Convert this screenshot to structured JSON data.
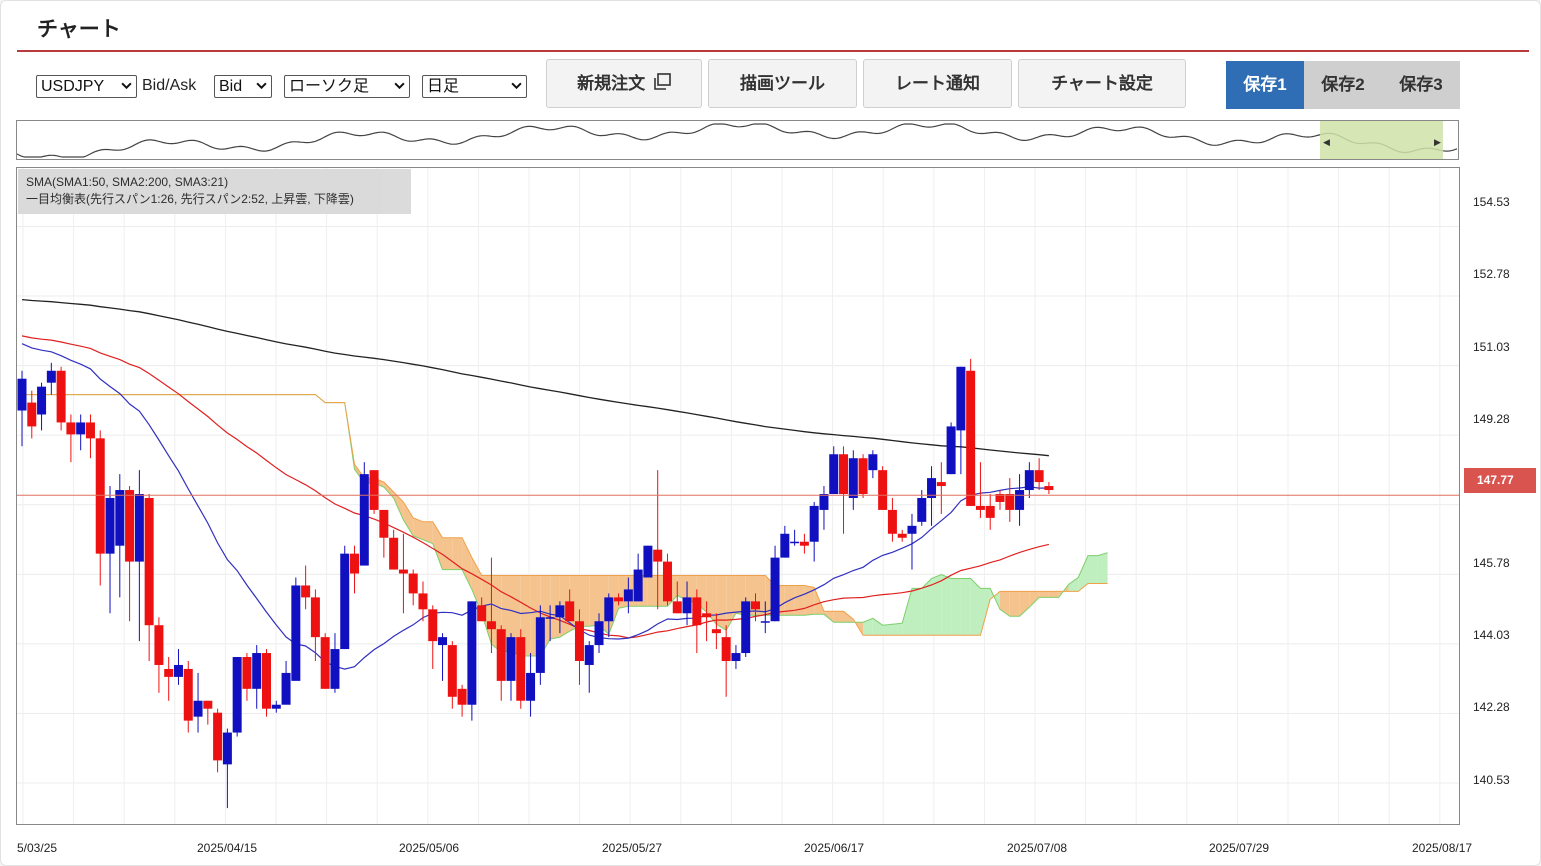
{
  "header": {
    "title": "チャート"
  },
  "controls": {
    "symbol": "USDJPY",
    "bid_ask_label": "Bid/Ask",
    "bid_ask": "Bid",
    "chart_style": "ローソク足",
    "timeframe": "日足"
  },
  "toolbar": {
    "new_order": "新規注文",
    "drawing_tools": "描画ツール",
    "rate_alert": "レート通知",
    "chart_settings": "チャート設定"
  },
  "save_tabs": [
    {
      "label": "保存1",
      "active": true
    },
    {
      "label": "保存2",
      "active": false
    },
    {
      "label": "保存3",
      "active": false
    }
  ],
  "legend": {
    "line1": "SMA(SMA1:50, SMA2:200, SMA3:21)",
    "line2": "一目均衡表(先行スパン1:26, 先行スパン2:52, 上昇雲, 下降雲)"
  },
  "colors": {
    "accent_rule": "#b83a3a",
    "active_tab": "#2f6db5",
    "bull": "#1010c0",
    "bear": "#ee1111",
    "sma1": "#e02020",
    "sma2": "#222222",
    "sma3": "#3030c0",
    "cloud_bear": "#f5c48e",
    "cloud_bull": "#bfeebf",
    "price_line": "#e07060"
  },
  "chart_data": {
    "type": "candlestick",
    "y_ticks": [
      "154.53",
      "152.78",
      "151.03",
      "149.28",
      "147.77",
      "145.78",
      "144.03",
      "142.28",
      "140.53"
    ],
    "current_price": "147.77",
    "x_ticks": [
      "5/03/25",
      "2025/04/15",
      "2025/05/06",
      "2025/05/27",
      "2025/06/17",
      "2025/07/08",
      "2025/07/29",
      "2025/08/17"
    ],
    "ylim": [
      139.5,
      156.0
    ],
    "grid": true,
    "candles": [
      [
        149.9,
        150.7,
        149.0,
        150.9
      ],
      [
        150.1,
        149.5,
        149.2,
        150.4
      ],
      [
        149.8,
        150.5,
        149.4,
        150.6
      ],
      [
        150.6,
        150.9,
        150.3,
        151.1
      ],
      [
        150.9,
        149.6,
        149.4,
        151.0
      ],
      [
        149.6,
        149.3,
        148.6,
        149.8
      ],
      [
        149.3,
        149.6,
        148.9,
        149.8
      ],
      [
        149.6,
        149.2,
        148.7,
        149.8
      ],
      [
        149.2,
        146.3,
        145.5,
        149.4
      ],
      [
        146.3,
        147.7,
        144.8,
        148.0
      ],
      [
        146.5,
        147.9,
        145.2,
        148.3
      ],
      [
        147.9,
        146.1,
        144.6,
        148.0
      ],
      [
        146.1,
        147.8,
        144.1,
        148.4
      ],
      [
        147.7,
        144.5,
        143.6,
        147.8
      ],
      [
        144.5,
        143.5,
        142.8,
        144.7
      ],
      [
        143.4,
        143.2,
        142.6,
        143.7
      ],
      [
        143.2,
        143.5,
        143.0,
        143.9
      ],
      [
        143.4,
        142.1,
        141.8,
        143.6
      ],
      [
        142.2,
        142.6,
        141.8,
        143.3
      ],
      [
        142.6,
        142.4,
        142.0,
        142.6
      ],
      [
        142.3,
        141.1,
        140.8,
        142.4
      ],
      [
        141.0,
        141.8,
        139.9,
        141.9
      ],
      [
        141.8,
        143.7,
        141.7,
        143.7
      ],
      [
        143.7,
        142.9,
        142.6,
        143.8
      ],
      [
        142.9,
        143.8,
        142.4,
        144.0
      ],
      [
        143.8,
        142.4,
        142.2,
        143.9
      ],
      [
        142.4,
        142.5,
        142.3,
        142.6
      ],
      [
        142.5,
        143.3,
        142.6,
        143.6
      ],
      [
        143.1,
        145.5,
        143.2,
        145.7
      ],
      [
        145.5,
        145.2,
        144.9,
        146.0
      ],
      [
        145.2,
        144.2,
        143.6,
        145.4
      ],
      [
        144.2,
        142.9,
        142.9,
        144.3
      ],
      [
        142.9,
        143.9,
        142.8,
        144.3
      ],
      [
        143.9,
        146.3,
        143.9,
        146.5
      ],
      [
        146.3,
        145.8,
        145.3,
        146.5
      ],
      [
        146.0,
        148.3,
        146.0,
        148.6
      ],
      [
        148.4,
        147.4,
        147.3,
        148.4
      ],
      [
        147.4,
        146.7,
        146.2,
        147.4
      ],
      [
        146.7,
        145.9,
        145.9,
        146.9
      ],
      [
        145.9,
        145.8,
        144.8,
        146.8
      ],
      [
        145.8,
        145.3,
        145.0,
        145.9
      ],
      [
        145.3,
        144.9,
        144.6,
        145.6
      ],
      [
        144.9,
        144.1,
        143.4,
        145.0
      ],
      [
        144.0,
        144.2,
        143.1,
        144.3
      ],
      [
        144.0,
        142.7,
        142.4,
        144.1
      ],
      [
        142.9,
        142.5,
        142.2,
        143.0
      ],
      [
        142.5,
        145.1,
        142.1,
        145.1
      ],
      [
        145.0,
        144.6,
        144.6,
        145.2
      ],
      [
        144.6,
        144.4,
        143.8,
        146.2
      ],
      [
        144.4,
        143.1,
        142.6,
        144.5
      ],
      [
        143.1,
        144.2,
        142.6,
        144.3
      ],
      [
        144.2,
        142.6,
        142.4,
        144.4
      ],
      [
        142.6,
        143.3,
        142.2,
        143.8
      ],
      [
        143.3,
        144.7,
        143.0,
        145.0
      ],
      [
        144.7,
        144.7,
        144.1,
        145.0
      ],
      [
        144.7,
        145.0,
        144.3,
        145.1
      ],
      [
        145.1,
        144.6,
        144.6,
        145.4
      ],
      [
        144.6,
        143.6,
        143.0,
        144.9
      ],
      [
        143.5,
        144.0,
        142.8,
        144.1
      ],
      [
        144.0,
        144.6,
        143.8,
        144.8
      ],
      [
        144.6,
        145.2,
        144.2,
        145.3
      ],
      [
        145.2,
        145.1,
        145.0,
        145.3
      ],
      [
        145.1,
        145.4,
        144.8,
        145.7
      ],
      [
        145.1,
        145.9,
        145.1,
        146.3
      ],
      [
        145.7,
        146.5,
        145.7,
        146.5
      ],
      [
        146.4,
        146.1,
        144.9,
        148.4
      ],
      [
        146.1,
        145.1,
        145.0,
        146.3
      ],
      [
        145.1,
        144.8,
        144.8,
        145.6
      ],
      [
        144.8,
        145.2,
        144.5,
        145.6
      ],
      [
        145.2,
        144.5,
        143.8,
        145.4
      ],
      [
        144.8,
        144.7,
        144.1,
        145.1
      ],
      [
        144.4,
        144.3,
        143.9,
        144.8
      ],
      [
        144.2,
        143.6,
        142.7,
        144.5
      ],
      [
        143.6,
        143.8,
        143.4,
        144.0
      ],
      [
        143.8,
        145.1,
        143.7,
        145.2
      ],
      [
        145.1,
        144.9,
        144.6,
        145.3
      ],
      [
        144.6,
        144.6,
        144.3,
        145.1
      ],
      [
        144.6,
        146.2,
        144.6,
        146.5
      ],
      [
        146.2,
        146.8,
        146.2,
        147.0
      ],
      [
        146.6,
        146.6,
        146.5,
        146.9
      ],
      [
        146.6,
        146.5,
        146.3,
        146.8
      ],
      [
        146.6,
        147.5,
        146.1,
        147.6
      ],
      [
        147.4,
        147.8,
        146.9,
        148.0
      ],
      [
        147.8,
        148.8,
        147.8,
        149.0
      ],
      [
        148.8,
        147.8,
        146.8,
        149.0
      ],
      [
        147.7,
        148.7,
        147.4,
        148.9
      ],
      [
        148.7,
        147.8,
        147.7,
        148.8
      ],
      [
        148.4,
        148.8,
        148.2,
        148.9
      ],
      [
        148.4,
        147.4,
        147.4,
        148.5
      ],
      [
        147.4,
        146.8,
        146.6,
        147.7
      ],
      [
        146.8,
        146.7,
        146.6,
        146.9
      ],
      [
        146.8,
        147.0,
        145.9,
        147.3
      ],
      [
        147.1,
        147.7,
        147.0,
        147.9
      ],
      [
        147.7,
        148.2,
        147.0,
        148.5
      ],
      [
        148.1,
        148.0,
        147.3,
        148.6
      ],
      [
        148.3,
        149.5,
        148.3,
        149.6
      ],
      [
        149.4,
        151.0,
        148.3,
        151.0
      ],
      [
        150.9,
        147.5,
        147.5,
        151.2
      ],
      [
        147.5,
        147.4,
        147.2,
        148.6
      ],
      [
        147.5,
        147.2,
        146.9,
        147.8
      ],
      [
        147.8,
        147.6,
        147.4,
        147.9
      ],
      [
        147.8,
        147.4,
        147.1,
        148.2
      ],
      [
        147.4,
        147.9,
        147.0,
        148.3
      ],
      [
        147.9,
        148.4,
        147.7,
        148.6
      ],
      [
        148.4,
        148.1,
        147.9,
        148.7
      ],
      [
        148.0,
        147.9,
        147.8,
        148.1
      ]
    ]
  }
}
